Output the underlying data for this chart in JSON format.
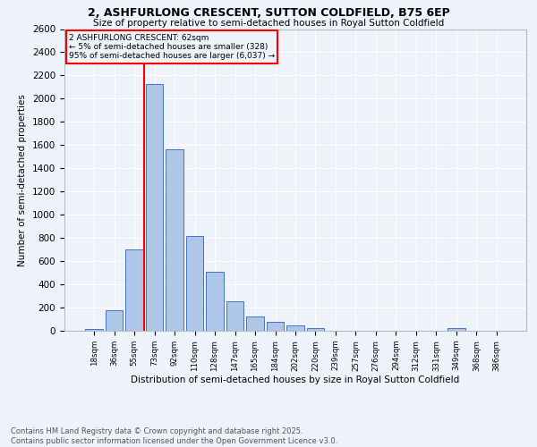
{
  "title": "2, ASHFURLONG CRESCENT, SUTTON COLDFIELD, B75 6EP",
  "subtitle": "Size of property relative to semi-detached houses in Royal Sutton Coldfield",
  "xlabel": "Distribution of semi-detached houses by size in Royal Sutton Coldfield",
  "ylabel": "Number of semi-detached properties",
  "footnote": "Contains HM Land Registry data © Crown copyright and database right 2025.\nContains public sector information licensed under the Open Government Licence v3.0.",
  "bar_labels": [
    "18sqm",
    "36sqm",
    "55sqm",
    "73sqm",
    "92sqm",
    "110sqm",
    "128sqm",
    "147sqm",
    "165sqm",
    "184sqm",
    "202sqm",
    "220sqm",
    "239sqm",
    "257sqm",
    "276sqm",
    "294sqm",
    "312sqm",
    "331sqm",
    "349sqm",
    "368sqm",
    "386sqm"
  ],
  "bar_values": [
    15,
    180,
    700,
    2130,
    1560,
    820,
    510,
    255,
    125,
    75,
    50,
    25,
    0,
    0,
    0,
    0,
    0,
    0,
    20,
    0,
    0
  ],
  "bar_color": "#aec6e8",
  "bar_edge_color": "#4472c4",
  "vline_index": 2.5,
  "vline_color": "red",
  "annotation_text": "2 ASHFURLONG CRESCENT: 62sqm\n← 5% of semi-detached houses are smaller (328)\n95% of semi-detached houses are larger (6,037) →",
  "annotation_box_color": "red",
  "ylim": [
    0,
    2600
  ],
  "background_color": "#eef2fb",
  "grid_color": "#ffffff"
}
